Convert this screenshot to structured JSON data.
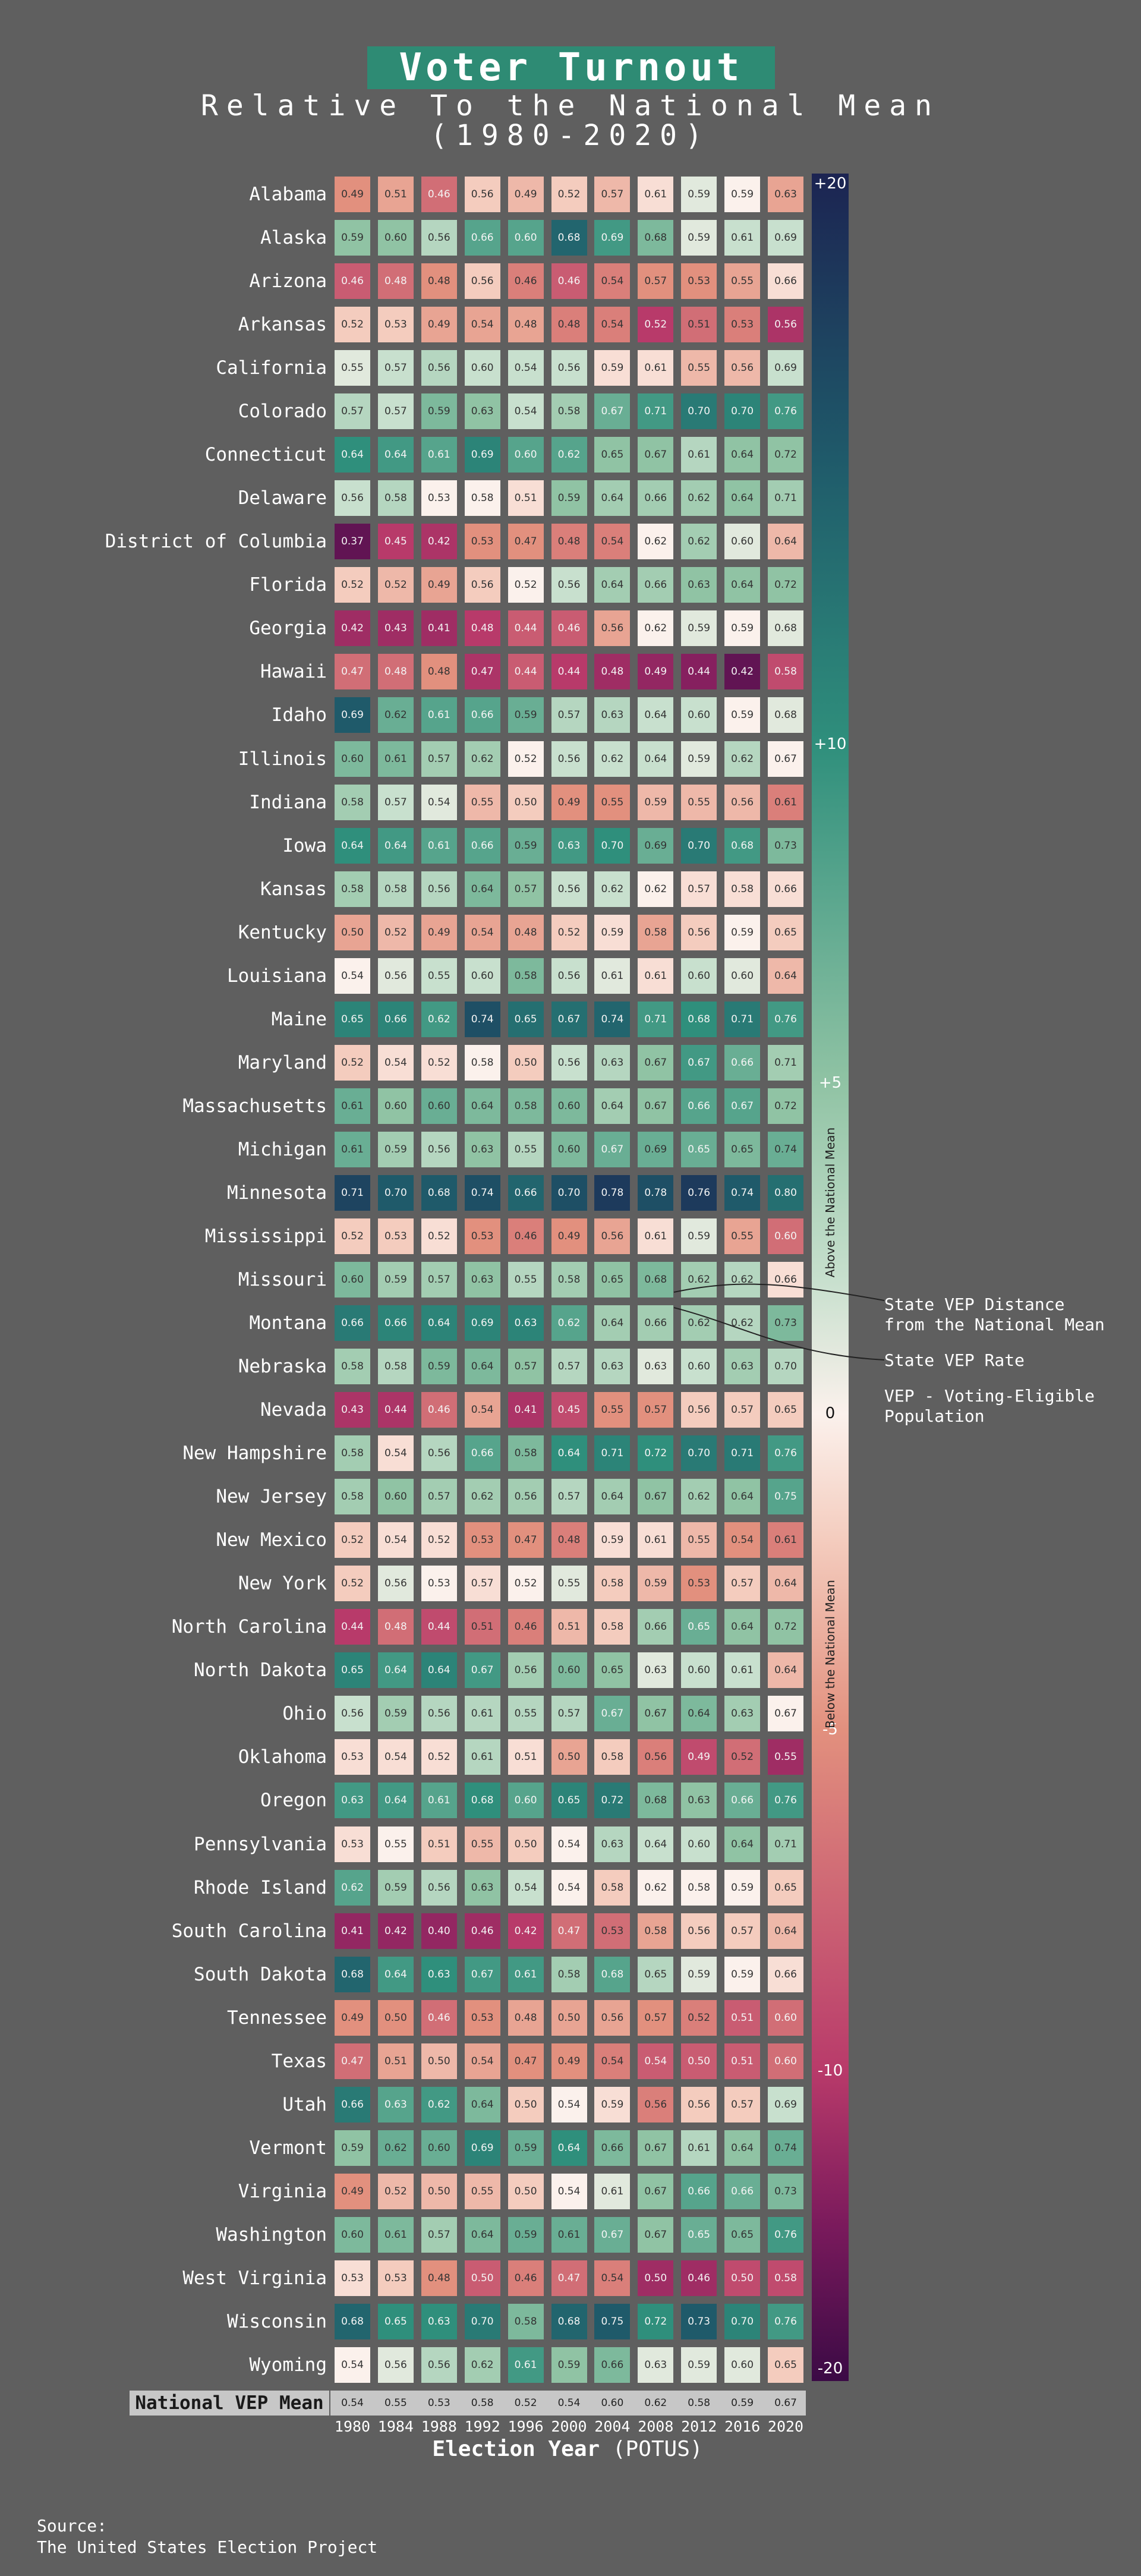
{
  "chart_data": {
    "type": "heatmap",
    "title": "Voter Turnout",
    "subtitle_line1": "Relative To the National Mean",
    "subtitle_line2": "(1980-2020)",
    "xlabel_bold": "Election Year",
    "xlabel_rest": " (POTUS)",
    "years": [
      "1980",
      "1984",
      "1988",
      "1992",
      "1996",
      "2000",
      "2004",
      "2008",
      "2012",
      "2016",
      "2020"
    ],
    "national_mean_label": "National VEP Mean",
    "national_mean": [
      0.54,
      0.55,
      0.53,
      0.58,
      0.52,
      0.54,
      0.6,
      0.62,
      0.58,
      0.59,
      0.67
    ],
    "national_mean_text": [
      "0.54",
      "0.55",
      "0.53",
      "0.58",
      "0.52",
      "0.54",
      "0.60",
      "0.62",
      "0.58",
      "0.59",
      "0.67"
    ],
    "states": [
      {
        "name": "Alabama",
        "values": [
          0.49,
          0.51,
          0.46,
          0.56,
          0.49,
          0.52,
          0.57,
          0.61,
          0.59,
          0.59,
          0.63
        ]
      },
      {
        "name": "Alaska",
        "values": [
          0.59,
          0.6,
          0.56,
          0.66,
          0.6,
          0.68,
          0.69,
          0.68,
          0.59,
          0.61,
          0.69
        ]
      },
      {
        "name": "Arizona",
        "values": [
          0.46,
          0.48,
          0.48,
          0.56,
          0.46,
          0.46,
          0.54,
          0.57,
          0.53,
          0.55,
          0.66
        ]
      },
      {
        "name": "Arkansas",
        "values": [
          0.52,
          0.53,
          0.49,
          0.54,
          0.48,
          0.48,
          0.54,
          0.52,
          0.51,
          0.53,
          0.56
        ]
      },
      {
        "name": "California",
        "values": [
          0.55,
          0.57,
          0.56,
          0.6,
          0.54,
          0.56,
          0.59,
          0.61,
          0.55,
          0.56,
          0.69
        ]
      },
      {
        "name": "Colorado",
        "values": [
          0.57,
          0.57,
          0.59,
          0.63,
          0.54,
          0.58,
          0.67,
          0.71,
          0.7,
          0.7,
          0.76
        ]
      },
      {
        "name": "Connecticut",
        "values": [
          0.64,
          0.64,
          0.61,
          0.69,
          0.6,
          0.62,
          0.65,
          0.67,
          0.61,
          0.64,
          0.72
        ]
      },
      {
        "name": "Delaware",
        "values": [
          0.56,
          0.58,
          0.53,
          0.58,
          0.51,
          0.59,
          0.64,
          0.66,
          0.62,
          0.64,
          0.71
        ]
      },
      {
        "name": "District of Columbia",
        "values": [
          0.37,
          0.45,
          0.42,
          0.53,
          0.47,
          0.48,
          0.54,
          0.62,
          0.62,
          0.6,
          0.64
        ]
      },
      {
        "name": "Florida",
        "values": [
          0.52,
          0.52,
          0.49,
          0.56,
          0.52,
          0.56,
          0.64,
          0.66,
          0.63,
          0.64,
          0.72
        ]
      },
      {
        "name": "Georgia",
        "values": [
          0.42,
          0.43,
          0.41,
          0.48,
          0.44,
          0.46,
          0.56,
          0.62,
          0.59,
          0.59,
          0.68
        ]
      },
      {
        "name": "Hawaii",
        "values": [
          0.47,
          0.48,
          0.48,
          0.47,
          0.44,
          0.44,
          0.48,
          0.49,
          0.44,
          0.42,
          0.58
        ]
      },
      {
        "name": "Idaho",
        "values": [
          0.69,
          0.62,
          0.61,
          0.66,
          0.59,
          0.57,
          0.63,
          0.64,
          0.6,
          0.59,
          0.68
        ]
      },
      {
        "name": "Illinois",
        "values": [
          0.6,
          0.61,
          0.57,
          0.62,
          0.52,
          0.56,
          0.62,
          0.64,
          0.59,
          0.62,
          0.67
        ]
      },
      {
        "name": "Indiana",
        "values": [
          0.58,
          0.57,
          0.54,
          0.55,
          0.5,
          0.49,
          0.55,
          0.59,
          0.55,
          0.56,
          0.61
        ]
      },
      {
        "name": "Iowa",
        "values": [
          0.64,
          0.64,
          0.61,
          0.66,
          0.59,
          0.63,
          0.7,
          0.69,
          0.7,
          0.68,
          0.73
        ]
      },
      {
        "name": "Kansas",
        "values": [
          0.58,
          0.58,
          0.56,
          0.64,
          0.57,
          0.56,
          0.62,
          0.62,
          0.57,
          0.58,
          0.66
        ]
      },
      {
        "name": "Kentucky",
        "values": [
          0.5,
          0.52,
          0.49,
          0.54,
          0.48,
          0.52,
          0.59,
          0.58,
          0.56,
          0.59,
          0.65
        ]
      },
      {
        "name": "Louisiana",
        "values": [
          0.54,
          0.56,
          0.55,
          0.6,
          0.58,
          0.56,
          0.61,
          0.61,
          0.6,
          0.6,
          0.64
        ]
      },
      {
        "name": "Maine",
        "values": [
          0.65,
          0.66,
          0.62,
          0.74,
          0.65,
          0.67,
          0.74,
          0.71,
          0.68,
          0.71,
          0.76
        ]
      },
      {
        "name": "Maryland",
        "values": [
          0.52,
          0.54,
          0.52,
          0.58,
          0.5,
          0.56,
          0.63,
          0.67,
          0.67,
          0.66,
          0.71
        ]
      },
      {
        "name": "Massachusetts",
        "values": [
          0.61,
          0.6,
          0.6,
          0.64,
          0.58,
          0.6,
          0.64,
          0.67,
          0.66,
          0.67,
          0.72
        ]
      },
      {
        "name": "Michigan",
        "values": [
          0.61,
          0.59,
          0.56,
          0.63,
          0.55,
          0.6,
          0.67,
          0.69,
          0.65,
          0.65,
          0.74
        ]
      },
      {
        "name": "Minnesota",
        "values": [
          0.71,
          0.7,
          0.68,
          0.74,
          0.66,
          0.7,
          0.78,
          0.78,
          0.76,
          0.74,
          0.8
        ]
      },
      {
        "name": "Mississippi",
        "values": [
          0.52,
          0.53,
          0.52,
          0.53,
          0.46,
          0.49,
          0.56,
          0.61,
          0.59,
          0.55,
          0.6
        ]
      },
      {
        "name": "Missouri",
        "values": [
          0.6,
          0.59,
          0.57,
          0.63,
          0.55,
          0.58,
          0.65,
          0.68,
          0.62,
          0.62,
          0.66
        ]
      },
      {
        "name": "Montana",
        "values": [
          0.66,
          0.66,
          0.64,
          0.69,
          0.63,
          0.62,
          0.64,
          0.66,
          0.62,
          0.62,
          0.73
        ]
      },
      {
        "name": "Nebraska",
        "values": [
          0.58,
          0.58,
          0.59,
          0.64,
          0.57,
          0.57,
          0.63,
          0.63,
          0.6,
          0.63,
          0.7
        ]
      },
      {
        "name": "Nevada",
        "values": [
          0.43,
          0.44,
          0.46,
          0.54,
          0.41,
          0.45,
          0.55,
          0.57,
          0.56,
          0.57,
          0.65
        ]
      },
      {
        "name": "New Hampshire",
        "values": [
          0.58,
          0.54,
          0.56,
          0.66,
          0.58,
          0.64,
          0.71,
          0.72,
          0.7,
          0.71,
          0.76
        ]
      },
      {
        "name": "New Jersey",
        "values": [
          0.58,
          0.6,
          0.57,
          0.62,
          0.56,
          0.57,
          0.64,
          0.67,
          0.62,
          0.64,
          0.75
        ]
      },
      {
        "name": "New Mexico",
        "values": [
          0.52,
          0.54,
          0.52,
          0.53,
          0.47,
          0.48,
          0.59,
          0.61,
          0.55,
          0.54,
          0.61
        ]
      },
      {
        "name": "New York",
        "values": [
          0.52,
          0.56,
          0.53,
          0.57,
          0.52,
          0.55,
          0.58,
          0.59,
          0.53,
          0.57,
          0.64
        ]
      },
      {
        "name": "North Carolina",
        "values": [
          0.44,
          0.48,
          0.44,
          0.51,
          0.46,
          0.51,
          0.58,
          0.66,
          0.65,
          0.64,
          0.72
        ]
      },
      {
        "name": "North Dakota",
        "values": [
          0.65,
          0.64,
          0.64,
          0.67,
          0.56,
          0.6,
          0.65,
          0.63,
          0.6,
          0.61,
          0.64
        ]
      },
      {
        "name": "Ohio",
        "values": [
          0.56,
          0.59,
          0.56,
          0.61,
          0.55,
          0.57,
          0.67,
          0.67,
          0.64,
          0.63,
          0.67
        ]
      },
      {
        "name": "Oklahoma",
        "values": [
          0.53,
          0.54,
          0.52,
          0.61,
          0.51,
          0.5,
          0.58,
          0.56,
          0.49,
          0.52,
          0.55
        ]
      },
      {
        "name": "Oregon",
        "values": [
          0.63,
          0.64,
          0.61,
          0.68,
          0.6,
          0.65,
          0.72,
          0.68,
          0.63,
          0.66,
          0.76
        ]
      },
      {
        "name": "Pennsylvania",
        "values": [
          0.53,
          0.55,
          0.51,
          0.55,
          0.5,
          0.54,
          0.63,
          0.64,
          0.6,
          0.64,
          0.71
        ]
      },
      {
        "name": "Rhode Island",
        "values": [
          0.62,
          0.59,
          0.56,
          0.63,
          0.54,
          0.54,
          0.58,
          0.62,
          0.58,
          0.59,
          0.65
        ]
      },
      {
        "name": "South Carolina",
        "values": [
          0.41,
          0.42,
          0.4,
          0.46,
          0.42,
          0.47,
          0.53,
          0.58,
          0.56,
          0.57,
          0.64
        ]
      },
      {
        "name": "South Dakota",
        "values": [
          0.68,
          0.64,
          0.63,
          0.67,
          0.61,
          0.58,
          0.68,
          0.65,
          0.59,
          0.59,
          0.66
        ]
      },
      {
        "name": "Tennessee",
        "values": [
          0.49,
          0.5,
          0.46,
          0.53,
          0.48,
          0.5,
          0.56,
          0.57,
          0.52,
          0.51,
          0.6
        ]
      },
      {
        "name": "Texas",
        "values": [
          0.47,
          0.51,
          0.5,
          0.54,
          0.47,
          0.49,
          0.54,
          0.54,
          0.5,
          0.51,
          0.6
        ]
      },
      {
        "name": "Utah",
        "values": [
          0.66,
          0.63,
          0.62,
          0.64,
          0.5,
          0.54,
          0.59,
          0.56,
          0.56,
          0.57,
          0.69
        ]
      },
      {
        "name": "Vermont",
        "values": [
          0.59,
          0.62,
          0.6,
          0.69,
          0.59,
          0.64,
          0.66,
          0.67,
          0.61,
          0.64,
          0.74
        ]
      },
      {
        "name": "Virginia",
        "values": [
          0.49,
          0.52,
          0.5,
          0.55,
          0.5,
          0.54,
          0.61,
          0.67,
          0.66,
          0.66,
          0.73
        ]
      },
      {
        "name": "Washington",
        "values": [
          0.6,
          0.61,
          0.57,
          0.64,
          0.59,
          0.61,
          0.67,
          0.67,
          0.65,
          0.65,
          0.76
        ]
      },
      {
        "name": "West Virginia",
        "values": [
          0.53,
          0.53,
          0.48,
          0.5,
          0.46,
          0.47,
          0.54,
          0.5,
          0.46,
          0.5,
          0.58
        ]
      },
      {
        "name": "Wisconsin",
        "values": [
          0.68,
          0.65,
          0.63,
          0.7,
          0.58,
          0.68,
          0.75,
          0.72,
          0.73,
          0.7,
          0.76
        ]
      },
      {
        "name": "Wyoming",
        "values": [
          0.54,
          0.56,
          0.56,
          0.62,
          0.61,
          0.59,
          0.66,
          0.63,
          0.59,
          0.6,
          0.65
        ]
      }
    ],
    "colorbar": {
      "min": -20,
      "max": 20,
      "tick_labels": [
        "+20",
        "+10",
        "+5",
        "0",
        "-5",
        "-10",
        "-20"
      ],
      "tick_values": [
        20,
        10,
        5,
        0,
        -5,
        -10,
        -20
      ],
      "label_above": "Above the National Mean",
      "label_below": "Below the National Mean",
      "colors": {
        "-20": "#3b0a45",
        "-10": "#b83a6a",
        "-5": "#e2907e",
        "0": "#fbf1ec",
        "5": "#90c3a4",
        "10": "#2f8f7c",
        "20": "#1c2452"
      }
    },
    "annotations": [
      "State VEP Distance",
      "from the National Mean",
      "State VEP Rate",
      "VEP - Voting-Eligible",
      "Population"
    ]
  },
  "source": {
    "line1": "Source:",
    "line2": "The United States Election Project"
  }
}
